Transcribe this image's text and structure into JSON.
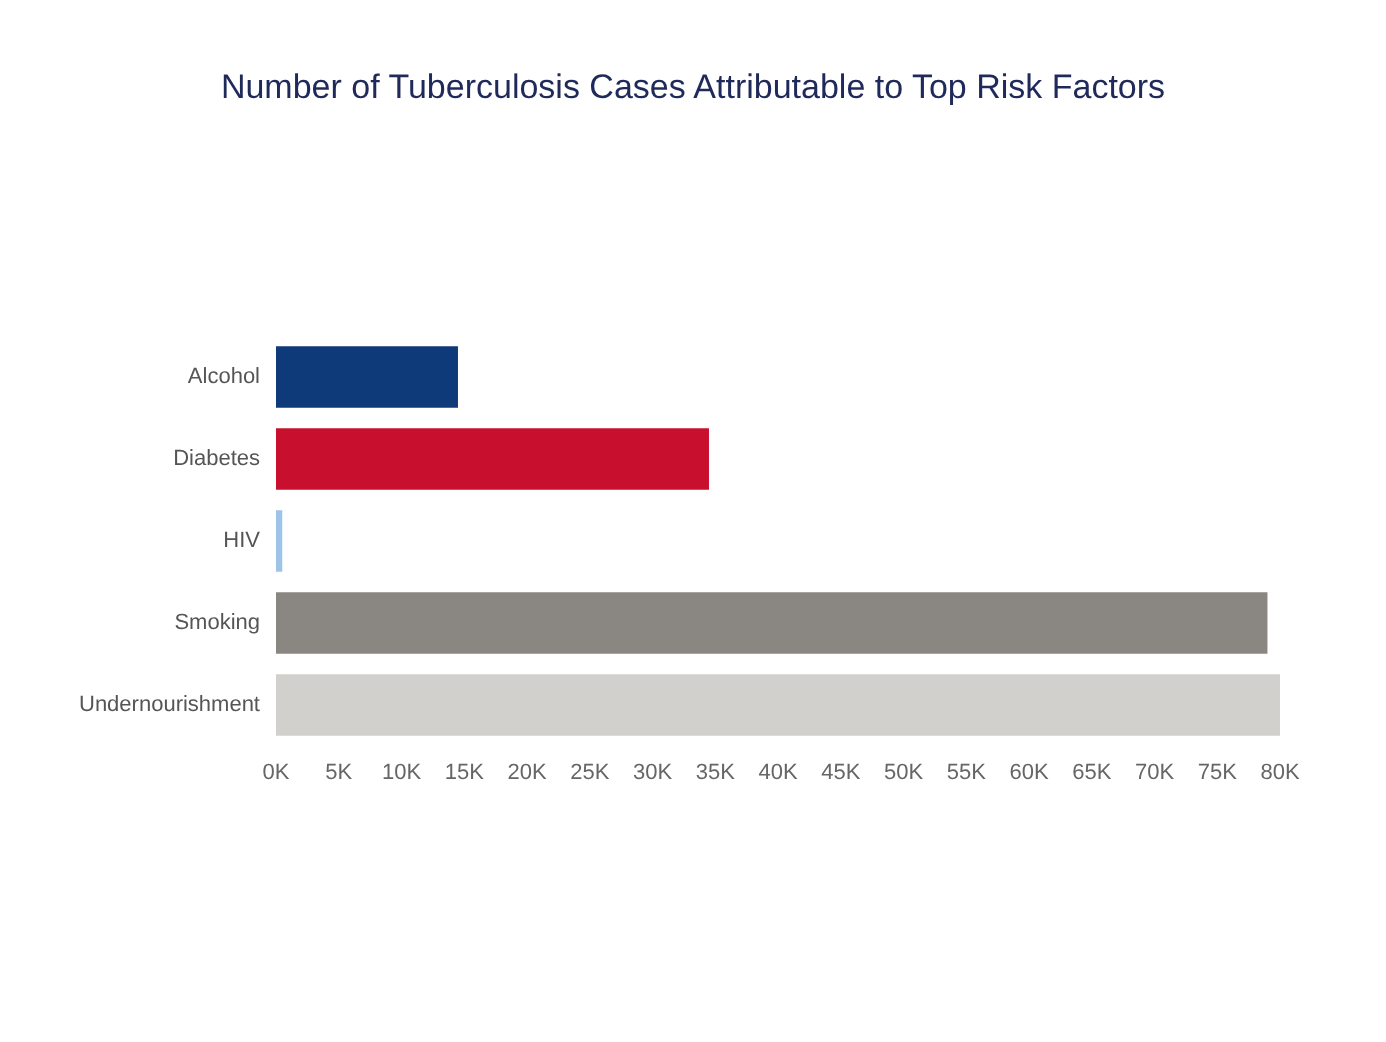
{
  "chart_data": {
    "type": "bar",
    "orientation": "horizontal",
    "title": "Number of Tuberculosis Cases Attributable to Top Risk Factors",
    "categories": [
      "Alcohol",
      "Diabetes",
      "HIV",
      "Smoking",
      "Undernourishment"
    ],
    "values": [
      14500,
      34500,
      500,
      79000,
      80000
    ],
    "colors": [
      "#0e3a7a",
      "#c8102e",
      "#9ec3e6",
      "#8a8782",
      "#d2d0cc"
    ],
    "xlim": [
      0,
      80000
    ],
    "xticks": [
      {
        "value": 0,
        "label": "0K"
      },
      {
        "value": 5000,
        "label": "5K"
      },
      {
        "value": 10000,
        "label": "10K"
      },
      {
        "value": 15000,
        "label": "15K"
      },
      {
        "value": 20000,
        "label": "20K"
      },
      {
        "value": 25000,
        "label": "25K"
      },
      {
        "value": 30000,
        "label": "30K"
      },
      {
        "value": 35000,
        "label": "35K"
      },
      {
        "value": 40000,
        "label": "40K"
      },
      {
        "value": 45000,
        "label": "45K"
      },
      {
        "value": 50000,
        "label": "50K"
      },
      {
        "value": 55000,
        "label": "55K"
      },
      {
        "value": 60000,
        "label": "60K"
      },
      {
        "value": 65000,
        "label": "65K"
      },
      {
        "value": 70000,
        "label": "70K"
      },
      {
        "value": 75000,
        "label": "75K"
      },
      {
        "value": 80000,
        "label": "80K"
      }
    ],
    "grid": false
  }
}
